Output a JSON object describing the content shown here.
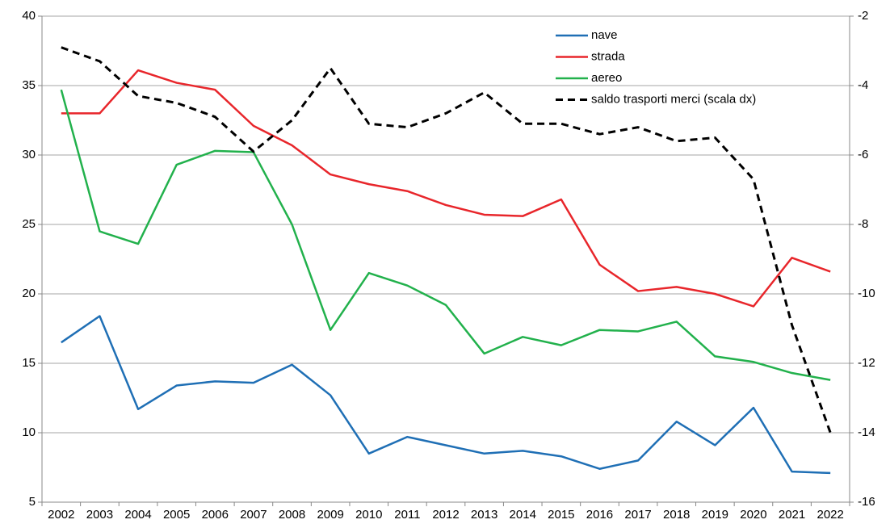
{
  "chart_data": {
    "type": "line",
    "categories": [
      "2002",
      "2003",
      "2004",
      "2005",
      "2006",
      "2007",
      "2008",
      "2009",
      "2010",
      "2011",
      "2012",
      "2013",
      "2014",
      "2015",
      "2016",
      "2017",
      "2018",
      "2019",
      "2020",
      "2021",
      "2022"
    ],
    "series": [
      {
        "name": "nave",
        "color": "#1f6fb5",
        "dash": false,
        "axis": "y",
        "values": [
          16.5,
          18.4,
          11.7,
          13.4,
          13.7,
          13.6,
          14.9,
          12.7,
          8.5,
          9.7,
          9.1,
          8.5,
          8.7,
          8.3,
          7.4,
          8.0,
          10.8,
          9.1,
          11.8,
          7.2,
          7.1
        ]
      },
      {
        "name": "strada",
        "color": "#e8262b",
        "dash": false,
        "axis": "y",
        "values": [
          33.0,
          33.0,
          36.1,
          35.2,
          34.7,
          32.1,
          30.7,
          28.6,
          27.9,
          27.4,
          26.4,
          25.7,
          25.6,
          26.8,
          22.1,
          20.2,
          20.5,
          20.0,
          19.1,
          22.6,
          21.6
        ]
      },
      {
        "name": "aereo",
        "color": "#22b14c",
        "dash": false,
        "axis": "y",
        "values": [
          34.7,
          24.5,
          23.6,
          29.3,
          30.3,
          30.2,
          25.0,
          17.4,
          21.5,
          20.6,
          19.2,
          15.7,
          16.9,
          16.3,
          17.4,
          17.3,
          18.0,
          15.5,
          15.1,
          14.3,
          13.8
        ]
      },
      {
        "name": "saldo trasporti merci (scala dx)",
        "color": "#000000",
        "dash": true,
        "axis": "y2",
        "values": [
          -2.9,
          -3.3,
          -4.3,
          -4.5,
          -4.9,
          -5.9,
          -5.0,
          -3.5,
          -5.1,
          -5.2,
          -4.8,
          -4.2,
          -5.1,
          -5.1,
          -5.4,
          -5.2,
          -5.6,
          -5.5,
          -6.7,
          -10.9,
          -14.0
        ]
      }
    ],
    "ylim": [
      5,
      40
    ],
    "yticks": [
      5,
      10,
      15,
      20,
      25,
      30,
      35,
      40
    ],
    "y2lim": [
      -16,
      -2
    ],
    "y2ticks": [
      -16,
      -14,
      -12,
      -10,
      -8,
      -6,
      -4,
      -2
    ],
    "grid": true,
    "legend": "top-right"
  }
}
